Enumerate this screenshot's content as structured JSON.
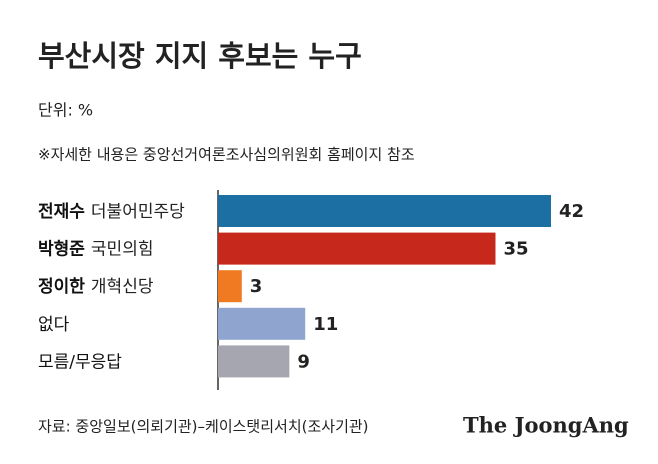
{
  "chart_data": {
    "type": "bar",
    "orientation": "horizontal",
    "title": "부산시장 지지 후보는 누구",
    "unit_note": "단위: %",
    "note": "※자세한 내용은 중앙선거여론조사심의위원회 홈페이지 참조",
    "categories": [
      "전재수",
      "박형준",
      "정이한",
      "없다",
      "모름/무응답"
    ],
    "parties": [
      "더불어민주당",
      "국민의힘",
      "개혁신당",
      null,
      null
    ],
    "values": [
      42,
      35,
      3,
      11,
      9
    ],
    "colors": [
      "#1b6fa3",
      "#c6281b",
      "#f07a22",
      "#8fa4cf",
      "#a6a6b0"
    ],
    "xlim": [
      0,
      42
    ],
    "source": "자료: 중앙일보(의뢰기관)–케이스탯리서치(조사기관)",
    "logo": "The JoongAng"
  }
}
